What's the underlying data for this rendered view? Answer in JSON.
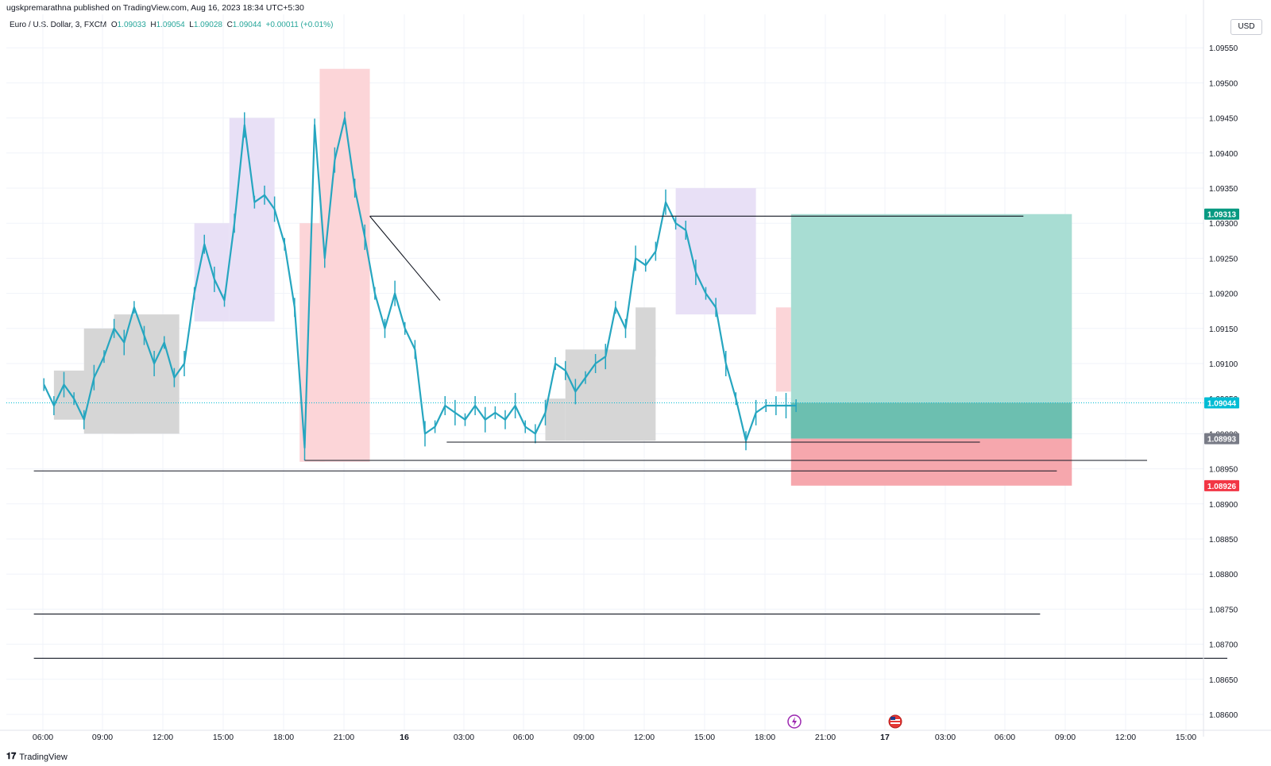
{
  "header": {
    "publisher": "ugskpremarathna published on TradingView.com, Aug 16, 2023 18:34 UTC+5:30"
  },
  "legend": {
    "symbol": "Euro / U.S. Dollar, 3, FXCM",
    "o_label": "O",
    "o": "1.09033",
    "h_label": "H",
    "h": "1.09054",
    "l_label": "L",
    "l": "1.09028",
    "c_label": "C",
    "c": "1.09044",
    "change": "+0.00011 (+0.01%)"
  },
  "currency": "USD",
  "footer": {
    "brand": "TradingView"
  },
  "colors": {
    "candle": "#26a6c0",
    "grid": "#f0f3fa",
    "gray_box": "#d6d6d6",
    "purple_box": "#e8e0f6",
    "red_box": "#fcd5d8",
    "tp_zone": "#a8ddd3",
    "tp_zone_dark": "#6cbfb0",
    "sl_zone": "#f6a7ad",
    "line": "#131722"
  },
  "chart_data": {
    "type": "line",
    "title": "",
    "xlabel": "",
    "ylabel": "",
    "ylim": [
      1.086,
      1.0958
    ],
    "y_ticks": [
      "1.09550",
      "1.09500",
      "1.09450",
      "1.09400",
      "1.09350",
      "1.09300",
      "1.09250",
      "1.09200",
      "1.09150",
      "1.09100",
      "1.09050",
      "1.09000",
      "1.08950",
      "1.08900",
      "1.08850",
      "1.08800",
      "1.08750",
      "1.08700",
      "1.08650",
      "1.08600"
    ],
    "x_ticks": [
      "06:00",
      "09:00",
      "12:00",
      "15:00",
      "18:00",
      "21:00",
      "16",
      "03:00",
      "06:00",
      "09:00",
      "12:00",
      "15:00",
      "18:00",
      "21:00",
      "17",
      "03:00",
      "06:00",
      "09:00",
      "12:00",
      "15:00"
    ],
    "x": [
      "15 05:00",
      "15 05:30",
      "15 06:00",
      "15 06:30",
      "15 07:00",
      "15 07:30",
      "15 08:00",
      "15 08:30",
      "15 09:00",
      "15 09:30",
      "15 10:00",
      "15 10:30",
      "15 11:00",
      "15 11:30",
      "15 12:00",
      "15 12:30",
      "15 13:00",
      "15 13:30",
      "15 14:00",
      "15 14:30",
      "15 15:00",
      "15 15:30",
      "15 16:00",
      "15 16:30",
      "15 17:00",
      "15 17:30",
      "15 18:00",
      "15 18:30",
      "15 19:00",
      "15 19:30",
      "15 20:00",
      "15 20:30",
      "15 21:00",
      "15 21:30",
      "15 22:00",
      "15 22:30",
      "15 23:00",
      "15 23:30",
      "16 00:00",
      "16 00:30",
      "16 01:00",
      "16 01:30",
      "16 02:00",
      "16 02:30",
      "16 03:00",
      "16 03:30",
      "16 04:00",
      "16 04:30",
      "16 05:00",
      "16 05:30",
      "16 06:00",
      "16 06:30",
      "16 07:00",
      "16 07:30",
      "16 08:00",
      "16 08:30",
      "16 09:00",
      "16 09:30",
      "16 10:00",
      "16 10:30",
      "16 11:00",
      "16 11:30",
      "16 12:00",
      "16 12:30",
      "16 13:00",
      "16 13:30",
      "16 14:00",
      "16 14:30",
      "16 15:00",
      "16 15:30",
      "16 16:00",
      "16 16:30",
      "16 17:00",
      "16 17:30",
      "16 18:00",
      "16 18:30"
    ],
    "series": [
      {
        "values": [
          1.0907,
          1.0904,
          1.0907,
          1.0905,
          1.0902,
          1.0908,
          1.0911,
          1.0915,
          1.0913,
          1.0918,
          1.0914,
          1.091,
          1.0913,
          1.0908,
          1.091,
          1.092,
          1.0927,
          1.0922,
          1.0919,
          1.093,
          1.0944,
          1.0933,
          1.0934,
          1.0932,
          1.0927,
          1.0918,
          1.0898,
          1.0944,
          1.0925,
          1.0939,
          1.0945,
          1.0935,
          1.0928,
          1.092,
          1.0915,
          1.092,
          1.0915,
          1.0912,
          1.09,
          1.0901,
          1.0904,
          1.0903,
          1.0902,
          1.0904,
          1.0902,
          1.0903,
          1.0902,
          1.0904,
          1.0901,
          1.09,
          1.0903,
          1.091,
          1.0909,
          1.0906,
          1.0908,
          1.091,
          1.0911,
          1.0918,
          1.0915,
          1.0925,
          1.0924,
          1.0926,
          1.0933,
          1.093,
          1.0929,
          1.0923,
          1.092,
          1.0918,
          1.091,
          1.0905,
          1.0899,
          1.0903,
          1.0904,
          1.0904,
          1.0904,
          1.0904
        ]
      }
    ],
    "boxes": [
      {
        "color": "gray",
        "x": [
          "15 05:30",
          "15 07:30"
        ],
        "y": [
          1.0902,
          1.0909
        ]
      },
      {
        "color": "gray",
        "x": [
          "15 07:00",
          "15 09:30"
        ],
        "y": [
          1.09,
          1.0915
        ]
      },
      {
        "color": "gray",
        "x": [
          "15 08:30",
          "15 11:45"
        ],
        "y": [
          1.09,
          1.0917
        ]
      },
      {
        "color": "purple",
        "x": [
          "15 12:30",
          "15 14:15"
        ],
        "y": [
          1.0916,
          1.093
        ]
      },
      {
        "color": "purple",
        "x": [
          "15 14:15",
          "15 16:30"
        ],
        "y": [
          1.0916,
          1.0945
        ]
      },
      {
        "color": "red",
        "x": [
          "15 17:45",
          "15 19:00"
        ],
        "y": [
          1.0896,
          1.093
        ]
      },
      {
        "color": "red",
        "x": [
          "15 18:45",
          "15 21:15"
        ],
        "y": [
          1.0896,
          1.0952
        ]
      },
      {
        "color": "gray",
        "x": [
          "16 06:00",
          "16 07:00"
        ],
        "y": [
          1.0899,
          1.0905
        ]
      },
      {
        "color": "gray",
        "x": [
          "16 07:00",
          "16 11:30"
        ],
        "y": [
          1.0899,
          1.0912
        ]
      },
      {
        "color": "gray",
        "x": [
          "16 10:30",
          "16 11:30"
        ],
        "y": [
          1.0911,
          1.0918
        ]
      },
      {
        "color": "purple",
        "x": [
          "16 12:30",
          "16 16:30"
        ],
        "y": [
          1.0917,
          1.0935
        ]
      },
      {
        "color": "red",
        "x": [
          "16 17:30",
          "16 18:15"
        ],
        "y": [
          1.0906,
          1.0918
        ]
      }
    ],
    "lines": [
      {
        "x": [
          "15 21:15",
          "17 05:50"
        ],
        "y": [
          1.0931,
          1.0931
        ]
      },
      {
        "x": [
          "15 21:15",
          "16 00:45"
        ],
        "y": [
          1.0931,
          1.0919
        ]
      },
      {
        "x": [
          "16 01:05",
          "17 03:40"
        ],
        "y": [
          1.08988,
          1.08988
        ]
      },
      {
        "x": [
          "15 18:00",
          "17 12:00"
        ],
        "y": [
          1.08962,
          1.08962
        ]
      },
      {
        "x": [
          "15 04:30",
          "17 07:30"
        ],
        "y": [
          1.08947,
          1.08947
        ]
      },
      {
        "x": [
          "15 04:30",
          "17 06:40"
        ],
        "y": [
          1.08743,
          1.08743
        ]
      },
      {
        "x": [
          "15 04:30",
          "17 16:00"
        ],
        "y": [
          1.0868,
          1.0868
        ]
      }
    ],
    "position": {
      "x": [
        "16 18:15",
        "17 08:15"
      ],
      "entry": 1.08993,
      "target": 1.09313,
      "stop": 1.08926,
      "current": 1.09044
    },
    "price_labels": [
      {
        "value": "1.09313",
        "color": "#089981"
      },
      {
        "value": "1.09044",
        "color": "#00bcd4"
      },
      {
        "value": "1.08993",
        "color": "#787b86"
      },
      {
        "value": "1.08926",
        "color": "#f23645"
      }
    ]
  }
}
